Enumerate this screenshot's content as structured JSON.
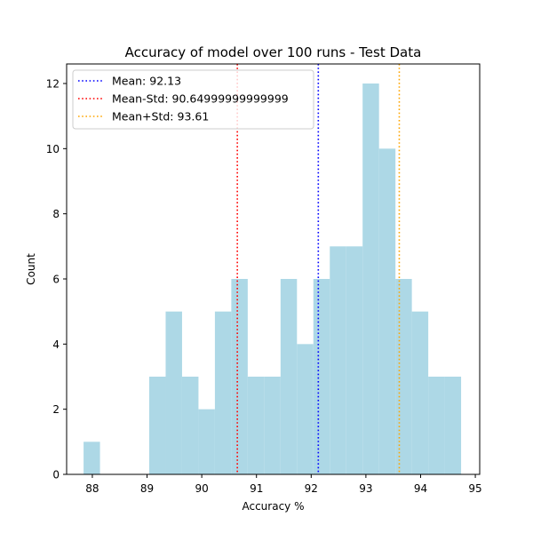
{
  "chart_data": {
    "type": "histogram",
    "title": "Accuracy of model over 100 runs - Test Data",
    "xlabel": "Accuracy %",
    "ylabel": "Count",
    "xlim": [
      87.53,
      95.08
    ],
    "ylim": [
      0,
      12.6
    ],
    "x_ticks": [
      88,
      89,
      90,
      91,
      92,
      93,
      94,
      95
    ],
    "y_ticks": [
      0,
      2,
      4,
      6,
      8,
      10,
      12
    ],
    "bar_color": "#add8e6",
    "bins": [
      {
        "start": 87.84,
        "end": 88.14,
        "count": 1
      },
      {
        "start": 88.14,
        "end": 88.44,
        "count": 0
      },
      {
        "start": 88.44,
        "end": 88.74,
        "count": 0
      },
      {
        "start": 88.74,
        "end": 89.04,
        "count": 0
      },
      {
        "start": 89.04,
        "end": 89.34,
        "count": 3
      },
      {
        "start": 89.34,
        "end": 89.64,
        "count": 5
      },
      {
        "start": 89.64,
        "end": 89.94,
        "count": 3
      },
      {
        "start": 89.94,
        "end": 90.24,
        "count": 2
      },
      {
        "start": 90.24,
        "end": 90.54,
        "count": 5
      },
      {
        "start": 90.54,
        "end": 90.84,
        "count": 6
      },
      {
        "start": 90.84,
        "end": 91.14,
        "count": 3
      },
      {
        "start": 91.14,
        "end": 91.44,
        "count": 3
      },
      {
        "start": 91.44,
        "end": 91.74,
        "count": 6
      },
      {
        "start": 91.74,
        "end": 92.04,
        "count": 4
      },
      {
        "start": 92.04,
        "end": 92.34,
        "count": 6
      },
      {
        "start": 92.34,
        "end": 92.64,
        "count": 7
      },
      {
        "start": 92.64,
        "end": 92.94,
        "count": 7
      },
      {
        "start": 92.94,
        "end": 93.24,
        "count": 12
      },
      {
        "start": 93.24,
        "end": 93.54,
        "count": 10
      },
      {
        "start": 93.54,
        "end": 93.84,
        "count": 6
      },
      {
        "start": 93.84,
        "end": 94.14,
        "count": 5
      },
      {
        "start": 94.14,
        "end": 94.44,
        "count": 3
      },
      {
        "start": 94.44,
        "end": 94.74,
        "count": 3
      }
    ],
    "reference_lines": [
      {
        "name": "mean",
        "x": 92.13,
        "color": "#0000ff",
        "label": "Mean: 92.13"
      },
      {
        "name": "mean-minus-std",
        "x": 90.65,
        "color": "#ff0000",
        "label": "Mean-Std: 90.64999999999999"
      },
      {
        "name": "mean-plus-std",
        "x": 93.61,
        "color": "#ffa500",
        "label": "Mean+Std: 93.61"
      }
    ],
    "legend": "top-left",
    "grid": false
  }
}
